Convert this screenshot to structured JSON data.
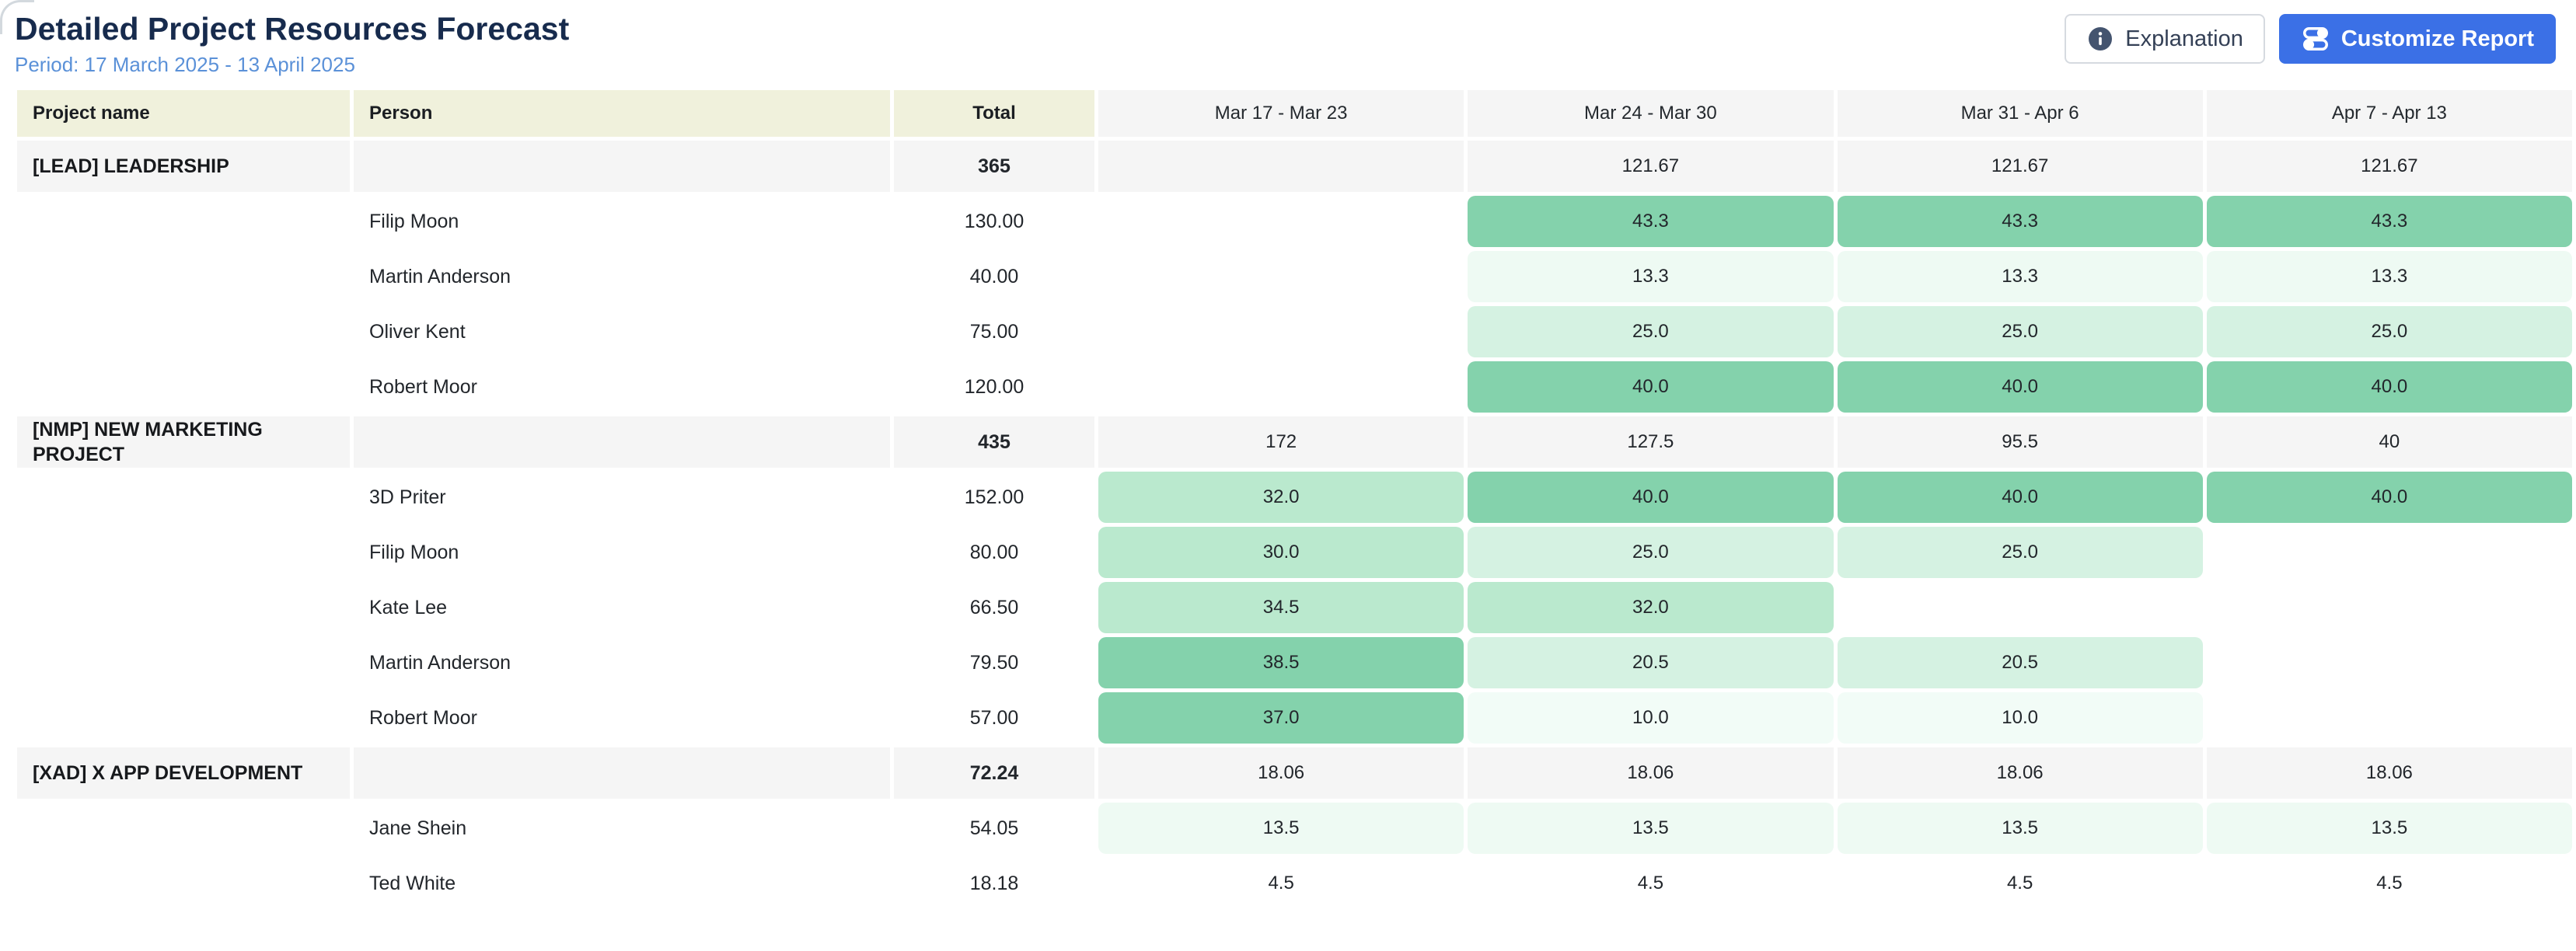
{
  "page": {
    "title": "Detailed Project Resources Forecast",
    "period": "Period: 17 March 2025 - 13 April 2025"
  },
  "toolbar": {
    "explanation_label": "Explanation",
    "customize_label": "Customize Report",
    "explanation_icon": "info-circle-icon",
    "customize_icon": "sliders-icon",
    "customize_color": "#3b70e6",
    "info_icon_color": "#44546f"
  },
  "colors": {
    "g4": "#84d2ac",
    "g3": "#bae9ce",
    "g2": "#d5f2e2",
    "g1": "#eefaf3",
    "g0": "#f2fcf7",
    "project_row_bg": "#f5f5f5",
    "header_pale_bg": "#f0f1dc",
    "header_gray_bg": "#f5f5f5",
    "title_color": "#172b4d",
    "period_color": "#5b91d8"
  },
  "table": {
    "columns": [
      {
        "label": "Project name"
      },
      {
        "label": "Person"
      },
      {
        "label": "Total"
      },
      {
        "label": "Mar 17 - Mar 23"
      },
      {
        "label": "Mar 24 - Mar 30"
      },
      {
        "label": "Mar 31 - Apr 6"
      },
      {
        "label": "Apr 7 - Apr 13"
      }
    ],
    "rows": [
      {
        "type": "project",
        "project": "[LEAD] LEADERSHIP",
        "person": "",
        "total": "365",
        "weeks": [
          {
            "v": ""
          },
          {
            "v": "121.67"
          },
          {
            "v": "121.67"
          },
          {
            "v": "121.67"
          }
        ]
      },
      {
        "type": "person",
        "project": "",
        "person": "Filip Moon",
        "total": "130.00",
        "weeks": [
          {
            "v": ""
          },
          {
            "v": "43.3",
            "c": "g4"
          },
          {
            "v": "43.3",
            "c": "g4"
          },
          {
            "v": "43.3",
            "c": "g4"
          }
        ]
      },
      {
        "type": "person",
        "project": "",
        "person": "Martin Anderson",
        "total": "40.00",
        "weeks": [
          {
            "v": ""
          },
          {
            "v": "13.3",
            "c": "g1"
          },
          {
            "v": "13.3",
            "c": "g1"
          },
          {
            "v": "13.3",
            "c": "g1"
          }
        ]
      },
      {
        "type": "person",
        "project": "",
        "person": "Oliver Kent",
        "total": "75.00",
        "weeks": [
          {
            "v": ""
          },
          {
            "v": "25.0",
            "c": "g2"
          },
          {
            "v": "25.0",
            "c": "g2"
          },
          {
            "v": "25.0",
            "c": "g2"
          }
        ]
      },
      {
        "type": "person",
        "project": "",
        "person": "Robert Moor",
        "total": "120.00",
        "weeks": [
          {
            "v": ""
          },
          {
            "v": "40.0",
            "c": "g4"
          },
          {
            "v": "40.0",
            "c": "g4"
          },
          {
            "v": "40.0",
            "c": "g4"
          }
        ]
      },
      {
        "type": "project",
        "project": "[NMP] NEW MARKETING PROJECT",
        "person": "",
        "total": "435",
        "weeks": [
          {
            "v": "172"
          },
          {
            "v": "127.5"
          },
          {
            "v": "95.5"
          },
          {
            "v": "40"
          }
        ]
      },
      {
        "type": "person",
        "project": "",
        "person": "3D Priter",
        "total": "152.00",
        "weeks": [
          {
            "v": "32.0",
            "c": "g3"
          },
          {
            "v": "40.0",
            "c": "g4"
          },
          {
            "v": "40.0",
            "c": "g4"
          },
          {
            "v": "40.0",
            "c": "g4"
          }
        ]
      },
      {
        "type": "person",
        "project": "",
        "person": "Filip Moon",
        "total": "80.00",
        "weeks": [
          {
            "v": "30.0",
            "c": "g3"
          },
          {
            "v": "25.0",
            "c": "g2"
          },
          {
            "v": "25.0",
            "c": "g2"
          },
          {
            "v": ""
          }
        ]
      },
      {
        "type": "person",
        "project": "",
        "person": "Kate Lee",
        "total": "66.50",
        "weeks": [
          {
            "v": "34.5",
            "c": "g3"
          },
          {
            "v": "32.0",
            "c": "g3"
          },
          {
            "v": ""
          },
          {
            "v": ""
          }
        ]
      },
      {
        "type": "person",
        "project": "",
        "person": "Martin Anderson",
        "total": "79.50",
        "weeks": [
          {
            "v": "38.5",
            "c": "g4"
          },
          {
            "v": "20.5",
            "c": "g2"
          },
          {
            "v": "20.5",
            "c": "g2"
          },
          {
            "v": ""
          }
        ]
      },
      {
        "type": "person",
        "project": "",
        "person": "Robert Moor",
        "total": "57.00",
        "weeks": [
          {
            "v": "37.0",
            "c": "g4"
          },
          {
            "v": "10.0",
            "c": "g0"
          },
          {
            "v": "10.0",
            "c": "g0"
          },
          {
            "v": ""
          }
        ]
      },
      {
        "type": "project",
        "project": "[XAD] X APP DEVELOPMENT",
        "person": "",
        "total": "72.24",
        "weeks": [
          {
            "v": "18.06"
          },
          {
            "v": "18.06"
          },
          {
            "v": "18.06"
          },
          {
            "v": "18.06"
          }
        ]
      },
      {
        "type": "person",
        "project": "",
        "person": "Jane Shein",
        "total": "54.05",
        "weeks": [
          {
            "v": "13.5",
            "c": "g1"
          },
          {
            "v": "13.5",
            "c": "g1"
          },
          {
            "v": "13.5",
            "c": "g1"
          },
          {
            "v": "13.5",
            "c": "g1"
          }
        ]
      },
      {
        "type": "person",
        "project": "",
        "person": "Ted White",
        "total": "18.18",
        "weeks": [
          {
            "v": "4.5"
          },
          {
            "v": "4.5"
          },
          {
            "v": "4.5"
          },
          {
            "v": "4.5"
          }
        ]
      }
    ]
  }
}
